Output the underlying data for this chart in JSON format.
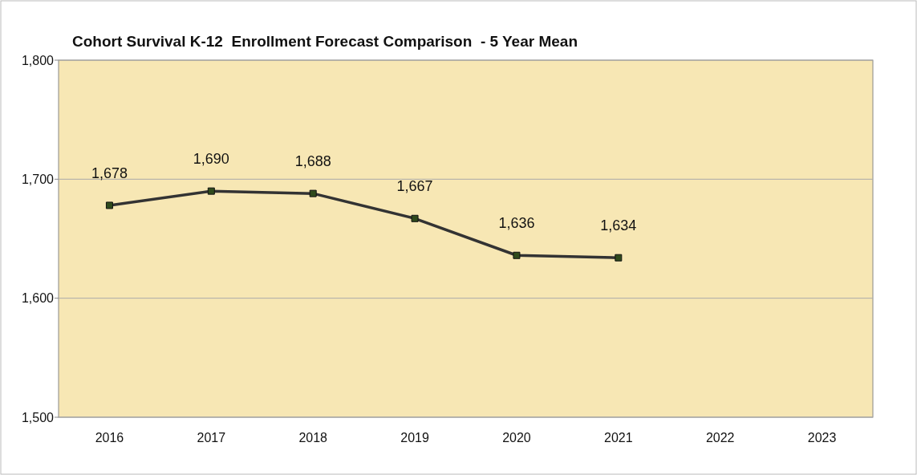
{
  "chart_data": {
    "type": "line",
    "title": "Cohort Survival K-12  Enrollment Forecast Comparison  - 5 Year Mean",
    "categories": [
      "2016",
      "2017",
      "2018",
      "2019",
      "2020",
      "2021",
      "2022",
      "2023"
    ],
    "series": [
      {
        "color": "#333333",
        "values": [
          1678,
          1690,
          1688,
          1667,
          1636,
          1634,
          null,
          null
        ],
        "value_labels": [
          "1,678",
          "1,690",
          "1,688",
          "1,667",
          "1,636",
          "1,634",
          null,
          null
        ]
      }
    ],
    "ylim": [
      1500,
      1800
    ],
    "yticks": [
      {
        "value": 1500,
        "label": "1,500"
      },
      {
        "value": 1600,
        "label": "1,600"
      },
      {
        "value": 1700,
        "label": "1,700"
      },
      {
        "value": 1800,
        "label": "1,800"
      }
    ],
    "grid": "y",
    "marker": "square"
  }
}
